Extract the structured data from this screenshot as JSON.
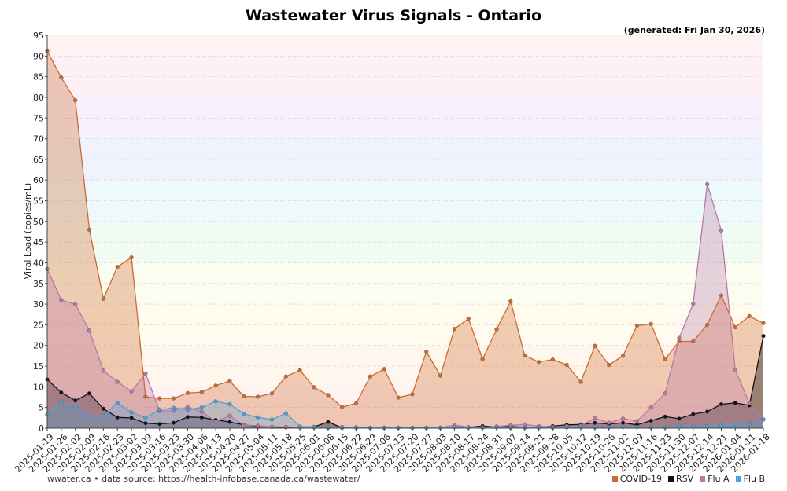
{
  "chart_data": {
    "type": "area",
    "title": "Wastewater Virus Signals - Ontario",
    "subtitle": "(generated: Fri Jan 30, 2026)",
    "ylabel": "Viral Load (copies/mL)",
    "ylim": [
      0,
      95
    ],
    "yticks": [
      0,
      5,
      10,
      15,
      20,
      25,
      30,
      35,
      40,
      45,
      50,
      55,
      60,
      65,
      70,
      75,
      80,
      85,
      90,
      95
    ],
    "x": [
      "2025-01-19",
      "2025-01-26",
      "2025-02-02",
      "2025-02-09",
      "2025-02-16",
      "2025-02-23",
      "2025-03-02",
      "2025-03-09",
      "2025-03-16",
      "2025-03-23",
      "2025-03-30",
      "2025-04-06",
      "2025-04-13",
      "2025-04-20",
      "2025-04-27",
      "2025-05-04",
      "2025-05-11",
      "2025-05-18",
      "2025-05-25",
      "2025-06-01",
      "2025-06-08",
      "2025-06-15",
      "2025-06-22",
      "2025-06-29",
      "2025-07-06",
      "2025-07-13",
      "2025-07-20",
      "2025-07-27",
      "2025-08-03",
      "2025-08-10",
      "2025-08-17",
      "2025-08-24",
      "2025-08-31",
      "2025-09-07",
      "2025-09-14",
      "2025-09-21",
      "2025-09-28",
      "2025-10-05",
      "2025-10-12",
      "2025-10-19",
      "2025-10-26",
      "2025-11-02",
      "2025-11-09",
      "2025-11-16",
      "2025-11-23",
      "2025-11-30",
      "2025-12-07",
      "2025-12-14",
      "2025-12-21",
      "2026-01-04",
      "2026-01-11",
      "2026-01-18"
    ],
    "series": [
      {
        "name": "COVID-19",
        "color": "#cc6a30",
        "values": [
          91.2,
          84.8,
          79.3,
          48.0,
          31.3,
          39.0,
          41.3,
          7.6,
          7.2,
          7.2,
          8.5,
          8.7,
          10.3,
          11.4,
          7.7,
          7.6,
          8.4,
          12.5,
          14.0,
          9.9,
          8.0,
          5.1,
          6.0,
          12.5,
          14.3,
          7.4,
          8.2,
          18.5,
          12.7,
          24.0,
          26.5,
          16.7,
          23.9,
          30.7,
          17.6,
          16.0,
          16.6,
          15.3,
          11.2,
          19.9,
          15.3,
          17.5,
          24.8,
          25.2,
          16.7,
          21.0,
          21.0,
          25.0,
          32.1,
          24.4,
          27.1,
          25.4
        ]
      },
      {
        "name": "RSV",
        "color": "#111111",
        "values": [
          11.8,
          8.6,
          6.7,
          8.4,
          4.7,
          2.6,
          2.5,
          1.2,
          1.0,
          1.3,
          2.7,
          2.6,
          2.0,
          1.5,
          0.8,
          0.4,
          0.3,
          0.2,
          0.2,
          0.3,
          1.5,
          0.1,
          0.2,
          0.1,
          0.1,
          0.1,
          0.1,
          0.1,
          0.1,
          0.3,
          0.2,
          0.5,
          0.3,
          0.4,
          0.2,
          0.2,
          0.5,
          0.8,
          0.9,
          1.3,
          1.0,
          1.3,
          0.8,
          1.8,
          2.8,
          2.3,
          3.4,
          4.0,
          5.8,
          6.1,
          5.5,
          22.3
        ]
      },
      {
        "name": "Flu A",
        "color": "#b877a8",
        "values": [
          38.5,
          31.0,
          30.0,
          23.6,
          13.9,
          11.2,
          8.9,
          13.2,
          4.2,
          4.2,
          5.1,
          4.0,
          1.6,
          3.0,
          0.7,
          0.6,
          0.3,
          0.3,
          0.2,
          0.2,
          0.1,
          0.2,
          0.1,
          0.1,
          0.1,
          0.1,
          0.1,
          0.1,
          0.1,
          0.8,
          0.2,
          0.2,
          0.4,
          0.7,
          0.9,
          0.5,
          0.3,
          0.5,
          0.6,
          2.4,
          1.3,
          2.3,
          1.7,
          5.0,
          8.4,
          21.8,
          30.1,
          59.0,
          47.8,
          14.1,
          6.0,
          2.1
        ]
      },
      {
        "name": "Flu B",
        "color": "#4aa3d8",
        "values": [
          3.3,
          6.1,
          5.2,
          2.9,
          3.0,
          6.1,
          3.8,
          2.6,
          4.5,
          4.9,
          4.5,
          5.0,
          6.5,
          5.8,
          3.5,
          2.6,
          2.1,
          3.6,
          0.4,
          0.3,
          0.2,
          0.3,
          0.2,
          0.1,
          0.1,
          0.1,
          0.1,
          0.1,
          0.1,
          0.3,
          0.2,
          0.1,
          0.2,
          0.1,
          0.1,
          0.1,
          0.1,
          0.2,
          0.3,
          0.2,
          0.2,
          0.3,
          0.3,
          0.2,
          0.2,
          0.5,
          0.4,
          0.5,
          0.6,
          0.9,
          1.0,
          2.1
        ]
      }
    ],
    "legend_placement": "bottom-right",
    "grid": true
  },
  "footer": {
    "source": "wwater.ca • data source: https://health-infobase.canada.ca/wastewater/"
  }
}
